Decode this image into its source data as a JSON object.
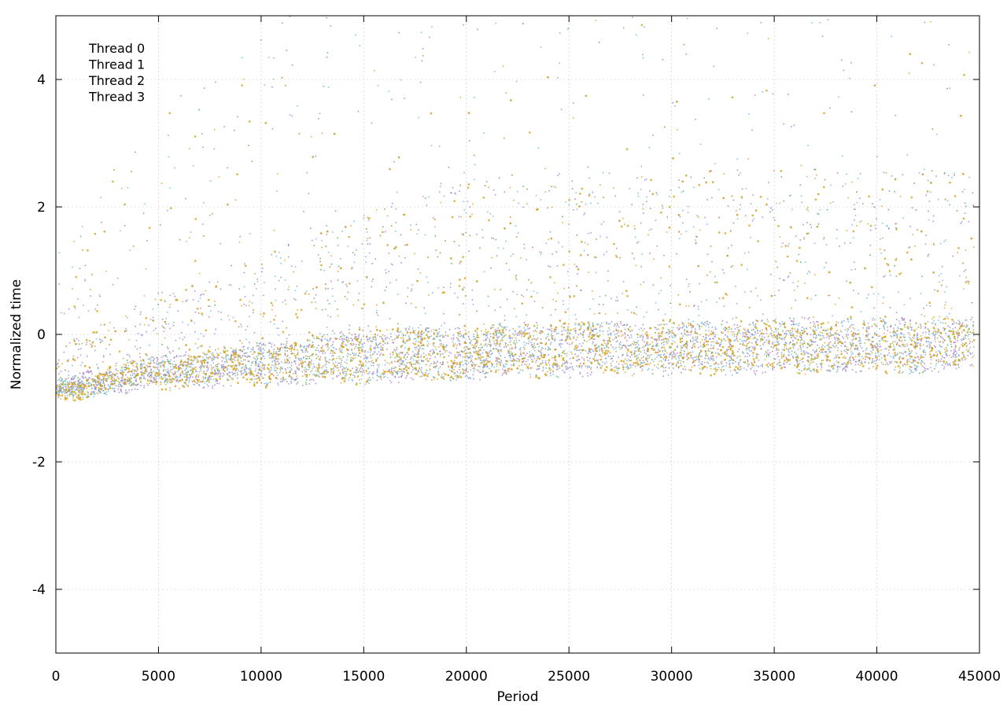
{
  "chart_data": {
    "type": "scatter",
    "title": "",
    "xlabel": "Period",
    "ylabel": "Normalized time",
    "xlim": [
      0,
      45000
    ],
    "ylim": [
      -5,
      5
    ],
    "x_ticks": [
      0,
      5000,
      10000,
      15000,
      20000,
      25000,
      30000,
      35000,
      40000,
      45000
    ],
    "y_ticks": [
      -4,
      -2,
      0,
      2,
      4
    ],
    "grid": true,
    "legend_position": "top-left",
    "description_of_points": "Dense noisy scatter; baseline rises from about -1.0 at period 0 to about -0.4 near period 45000, with frequent upward spikes reaching above 4.",
    "series": [
      {
        "name": "Thread 0",
        "color": "#9467bd"
      },
      {
        "name": "Thread 1",
        "color": "#2ca02c"
      },
      {
        "name": "Thread 2",
        "color": "#5aa9d6"
      },
      {
        "name": "Thread 3",
        "color": "#d4a017"
      }
    ],
    "trend": {
      "x": [
        0,
        2500,
        5000,
        10000,
        15000,
        20000,
        25000,
        30000,
        35000,
        40000,
        44700
      ],
      "y": [
        -1.0,
        -0.85,
        -0.75,
        -0.65,
        -0.55,
        -0.5,
        -0.45,
        -0.42,
        -0.4,
        -0.38,
        -0.38
      ]
    },
    "x_max_period": 44700
  }
}
